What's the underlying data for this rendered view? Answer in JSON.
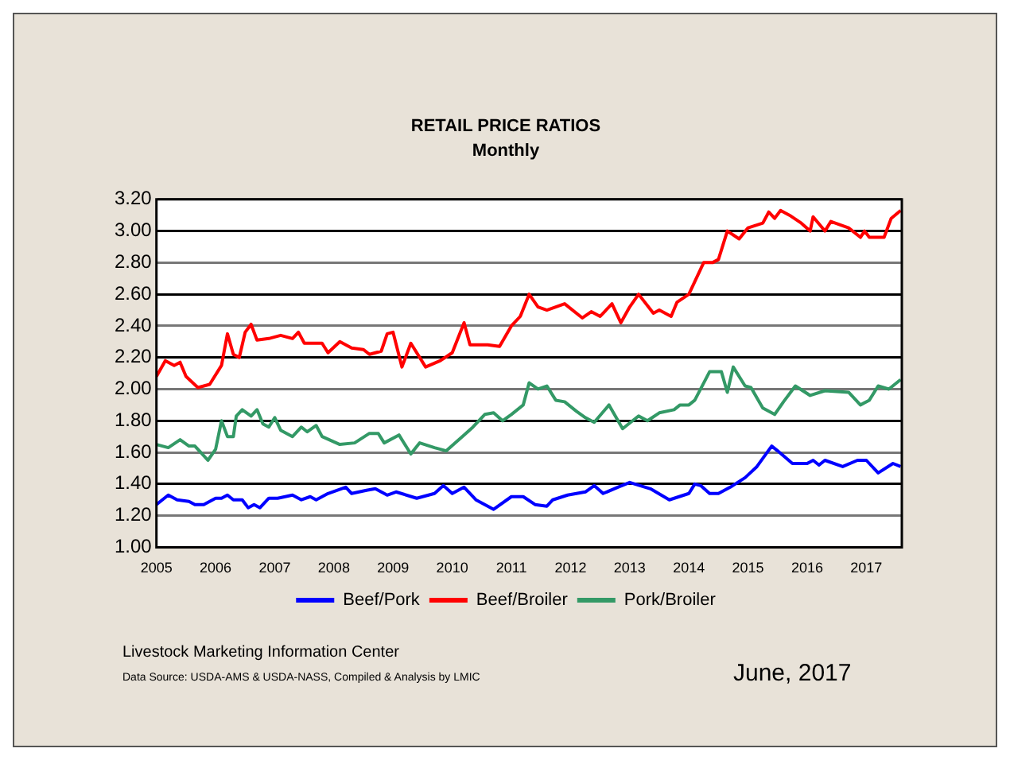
{
  "chart_data": {
    "type": "line",
    "title": "RETAIL PRICE RATIOS",
    "subtitle": "Monthly",
    "xlim": [
      2005,
      2017.6
    ],
    "xticks": [
      2005,
      2006,
      2007,
      2008,
      2009,
      2010,
      2011,
      2012,
      2013,
      2014,
      2015,
      2016,
      2017
    ],
    "ylim": [
      1.0,
      3.2
    ],
    "yticks": [
      {
        "value": 1.0,
        "label": "1.00"
      },
      {
        "value": 1.2,
        "label": "1.20"
      },
      {
        "value": 1.4,
        "label": "1.40"
      },
      {
        "value": 1.6,
        "label": "1.60"
      },
      {
        "value": 1.8,
        "label": "1.80"
      },
      {
        "value": 2.0,
        "label": "2.00"
      },
      {
        "value": 2.2,
        "label": "2.20"
      },
      {
        "value": 2.4,
        "label": "2.40"
      },
      {
        "value": 2.6,
        "label": "2.60"
      },
      {
        "value": 2.8,
        "label": "2.80"
      },
      {
        "value": 3.0,
        "label": "3.00"
      },
      {
        "value": 3.2,
        "label": "3.20"
      }
    ],
    "grid": "y",
    "legend": "bottom",
    "marker": "none",
    "line_style": "solid",
    "series": [
      {
        "name": "Beef/Pork",
        "color": "#0000ff",
        "x": [
          2005.0,
          2005.2,
          2005.35,
          2005.55,
          2005.65,
          2005.8,
          2006.0,
          2006.1,
          2006.2,
          2006.3,
          2006.45,
          2006.55,
          2006.65,
          2006.75,
          2006.9,
          2007.05,
          2007.3,
          2007.45,
          2007.6,
          2007.7,
          2007.9,
          2008.2,
          2008.3,
          2008.55,
          2008.7,
          2008.9,
          2009.05,
          2009.4,
          2009.7,
          2009.85,
          2010.0,
          2010.2,
          2010.4,
          2010.7,
          2011.0,
          2011.2,
          2011.4,
          2011.6,
          2011.7,
          2011.95,
          2012.25,
          2012.4,
          2012.55,
          2012.8,
          2013.0,
          2013.35,
          2013.67,
          2014.0,
          2014.1,
          2014.2,
          2014.35,
          2014.5,
          2014.7,
          2014.95,
          2015.15,
          2015.4,
          2015.5,
          2015.75,
          2016.0,
          2016.1,
          2016.2,
          2016.3,
          2016.6,
          2016.85,
          2017.0,
          2017.2,
          2017.45,
          2017.58
        ],
        "values": [
          1.27,
          1.33,
          1.3,
          1.29,
          1.27,
          1.27,
          1.31,
          1.31,
          1.33,
          1.3,
          1.3,
          1.25,
          1.27,
          1.25,
          1.31,
          1.31,
          1.33,
          1.3,
          1.32,
          1.3,
          1.34,
          1.38,
          1.34,
          1.36,
          1.37,
          1.33,
          1.35,
          1.31,
          1.34,
          1.39,
          1.34,
          1.38,
          1.3,
          1.24,
          1.32,
          1.32,
          1.27,
          1.26,
          1.3,
          1.33,
          1.35,
          1.39,
          1.34,
          1.38,
          1.41,
          1.37,
          1.3,
          1.34,
          1.4,
          1.39,
          1.34,
          1.34,
          1.38,
          1.44,
          1.51,
          1.64,
          1.61,
          1.53,
          1.53,
          1.55,
          1.52,
          1.55,
          1.51,
          1.55,
          1.55,
          1.47,
          1.53,
          1.51
        ]
      },
      {
        "name": "Beef/Broiler",
        "color": "#ff0000",
        "x": [
          2005.0,
          2005.15,
          2005.3,
          2005.4,
          2005.5,
          2005.7,
          2005.9,
          2006.1,
          2006.2,
          2006.3,
          2006.4,
          2006.5,
          2006.6,
          2006.7,
          2006.9,
          2007.1,
          2007.3,
          2007.4,
          2007.5,
          2007.8,
          2007.9,
          2008.1,
          2008.3,
          2008.5,
          2008.6,
          2008.8,
          2008.9,
          2009.0,
          2009.15,
          2009.3,
          2009.55,
          2009.8,
          2010.0,
          2010.2,
          2010.3,
          2010.6,
          2010.8,
          2011.0,
          2011.15,
          2011.3,
          2011.45,
          2011.6,
          2011.9,
          2012.2,
          2012.35,
          2012.5,
          2012.7,
          2012.85,
          2013.0,
          2013.15,
          2013.4,
          2013.5,
          2013.7,
          2013.8,
          2014.0,
          2014.25,
          2014.4,
          2014.5,
          2014.65,
          2014.85,
          2015.0,
          2015.25,
          2015.35,
          2015.45,
          2015.55,
          2015.7,
          2015.9,
          2016.05,
          2016.1,
          2016.3,
          2016.4,
          2016.7,
          2016.9,
          2016.97,
          2017.05,
          2017.3,
          2017.42,
          2017.58
        ],
        "values": [
          2.08,
          2.18,
          2.15,
          2.17,
          2.08,
          2.01,
          2.03,
          2.15,
          2.35,
          2.22,
          2.2,
          2.36,
          2.41,
          2.31,
          2.32,
          2.34,
          2.32,
          2.36,
          2.29,
          2.29,
          2.23,
          2.3,
          2.26,
          2.25,
          2.22,
          2.24,
          2.35,
          2.36,
          2.14,
          2.29,
          2.14,
          2.18,
          2.23,
          2.42,
          2.28,
          2.28,
          2.27,
          2.4,
          2.46,
          2.6,
          2.52,
          2.5,
          2.54,
          2.45,
          2.49,
          2.46,
          2.54,
          2.42,
          2.52,
          2.6,
          2.48,
          2.5,
          2.46,
          2.55,
          2.6,
          2.8,
          2.8,
          2.82,
          3.0,
          2.95,
          3.02,
          3.05,
          3.12,
          3.08,
          3.13,
          3.1,
          3.05,
          3.0,
          3.09,
          3.0,
          3.06,
          3.02,
          2.96,
          3.0,
          2.96,
          2.96,
          3.08,
          3.13
        ]
      },
      {
        "name": "Pork/Broiler",
        "color": "#339966",
        "x": [
          2005.0,
          2005.2,
          2005.4,
          2005.55,
          2005.65,
          2005.75,
          2005.87,
          2006.0,
          2006.1,
          2006.2,
          2006.3,
          2006.35,
          2006.45,
          2006.6,
          2006.7,
          2006.8,
          2006.9,
          2007.0,
          2007.1,
          2007.3,
          2007.45,
          2007.55,
          2007.7,
          2007.8,
          2008.1,
          2008.35,
          2008.6,
          2008.75,
          2008.85,
          2009.1,
          2009.3,
          2009.45,
          2009.7,
          2009.9,
          2010.2,
          2010.35,
          2010.55,
          2010.7,
          2010.85,
          2011.0,
          2011.2,
          2011.3,
          2011.45,
          2011.6,
          2011.75,
          2011.9,
          2012.1,
          2012.25,
          2012.4,
          2012.65,
          2012.88,
          2013.15,
          2013.3,
          2013.5,
          2013.75,
          2013.85,
          2014.0,
          2014.1,
          2014.35,
          2014.55,
          2014.65,
          2014.75,
          2014.95,
          2015.05,
          2015.25,
          2015.45,
          2015.6,
          2015.8,
          2016.05,
          2016.3,
          2016.7,
          2016.9,
          2017.05,
          2017.2,
          2017.38,
          2017.58
        ],
        "values": [
          1.65,
          1.63,
          1.68,
          1.64,
          1.64,
          1.6,
          1.55,
          1.62,
          1.8,
          1.7,
          1.7,
          1.83,
          1.87,
          1.83,
          1.87,
          1.78,
          1.76,
          1.82,
          1.74,
          1.7,
          1.76,
          1.73,
          1.77,
          1.7,
          1.65,
          1.66,
          1.72,
          1.72,
          1.66,
          1.71,
          1.59,
          1.66,
          1.63,
          1.61,
          1.71,
          1.76,
          1.84,
          1.85,
          1.8,
          1.84,
          1.9,
          2.04,
          2.0,
          2.02,
          1.93,
          1.92,
          1.86,
          1.82,
          1.79,
          1.9,
          1.75,
          1.83,
          1.8,
          1.85,
          1.87,
          1.9,
          1.9,
          1.93,
          2.11,
          2.11,
          1.98,
          2.14,
          2.02,
          2.01,
          1.88,
          1.84,
          1.92,
          2.02,
          1.96,
          1.99,
          1.98,
          1.9,
          1.93,
          2.02,
          2.0,
          2.06
        ]
      }
    ],
    "annotations": [
      "Livestock Marketing Information Center",
      "Data Source:  USDA-AMS & USDA-NASS, Compiled & Analysis by LMIC",
      "June, 2017"
    ]
  }
}
